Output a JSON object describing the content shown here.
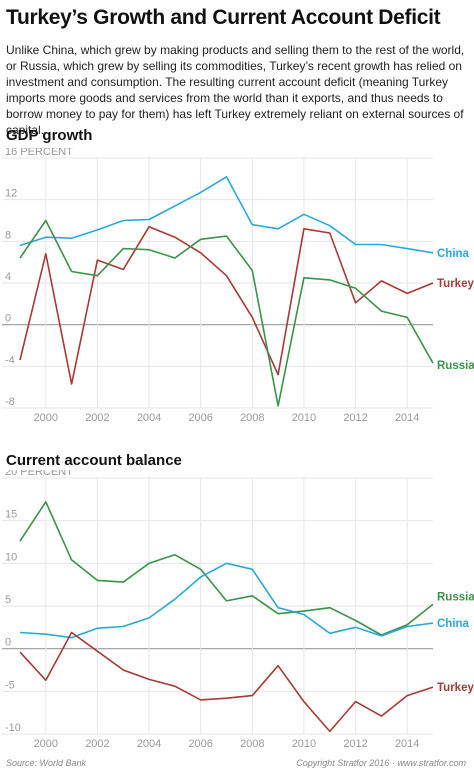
{
  "title": "Turkey’s Growth and Current Account Deficit",
  "intro": "Unlike China, which grew by making products and selling them to the rest of the world, or Russia, which grew by selling its commodities, Turkey’s recent growth has relied on investment and consumption. The resulting current account deficit (meaning Turkey imports more goods and services from the world than it exports, and thus needs to borrow money to pay for them) has left Turkey extremely reliant on external sources of capital.",
  "footer": {
    "source": "Source: World Bank",
    "copyright": "Copyright Stratfor 2016 · www.stratfor.com"
  },
  "colors": {
    "china": "#29a9d8",
    "turkey": "#a63b36",
    "russia": "#3b9348",
    "grid": "#e6e6e6",
    "zero_line": "#9a9a9a",
    "axis_text": "#9a9a9a"
  },
  "chart_data": [
    {
      "type": "line",
      "title": "GDP growth",
      "ylabel": "PERCENT",
      "x": [
        1999,
        2000,
        2001,
        2002,
        2003,
        2004,
        2005,
        2006,
        2007,
        2008,
        2009,
        2010,
        2011,
        2012,
        2013,
        2014,
        2015
      ],
      "xticks": [
        2000,
        2002,
        2004,
        2006,
        2008,
        2010,
        2012,
        2014
      ],
      "xlim": [
        1999,
        2015
      ],
      "ylim": [
        -8,
        16
      ],
      "yticks": [
        -8,
        -4,
        0,
        4,
        8,
        12,
        16
      ],
      "top_tick_label": "16 PERCENT",
      "grid": true,
      "series": [
        {
          "name": "China",
          "color_key": "china",
          "values": [
            7.6,
            8.4,
            8.3,
            9.1,
            10.0,
            10.1,
            11.4,
            12.7,
            14.2,
            9.6,
            9.2,
            10.6,
            9.5,
            7.7,
            7.7,
            7.3,
            6.9
          ]
        },
        {
          "name": "Turkey",
          "color_key": "turkey",
          "values": [
            -3.4,
            6.8,
            -5.7,
            6.2,
            5.3,
            9.4,
            8.4,
            6.9,
            4.7,
            0.7,
            -4.8,
            9.2,
            8.8,
            2.1,
            4.2,
            3.0,
            4.0
          ]
        },
        {
          "name": "Russia",
          "color_key": "russia",
          "values": [
            6.4,
            10.0,
            5.1,
            4.7,
            7.3,
            7.2,
            6.4,
            8.2,
            8.5,
            5.2,
            -7.8,
            4.5,
            4.3,
            3.5,
            1.3,
            0.7,
            -3.7
          ]
        }
      ]
    },
    {
      "type": "line",
      "title": "Current account balance",
      "ylabel": "PERCENT",
      "x": [
        1999,
        2000,
        2001,
        2002,
        2003,
        2004,
        2005,
        2006,
        2007,
        2008,
        2009,
        2010,
        2011,
        2012,
        2013,
        2014,
        2015
      ],
      "xticks": [
        2000,
        2002,
        2004,
        2006,
        2008,
        2010,
        2012,
        2014
      ],
      "xlim": [
        1999,
        2015
      ],
      "ylim": [
        -10,
        20
      ],
      "yticks": [
        -10,
        -5,
        0,
        5,
        10,
        15,
        20
      ],
      "top_tick_label": "20 PERCENT",
      "grid": true,
      "series": [
        {
          "name": "Russia",
          "color_key": "russia",
          "values": [
            12.6,
            17.2,
            10.4,
            8.0,
            7.8,
            10.0,
            11.0,
            9.3,
            5.6,
            6.2,
            4.1,
            4.4,
            4.8,
            3.3,
            1.6,
            2.8,
            5.2
          ]
        },
        {
          "name": "China",
          "color_key": "china",
          "values": [
            1.9,
            1.7,
            1.3,
            2.4,
            2.6,
            3.6,
            5.8,
            8.4,
            10.0,
            9.3,
            4.8,
            4.0,
            1.8,
            2.5,
            1.5,
            2.6,
            3.0
          ]
        },
        {
          "name": "Turkey",
          "color_key": "turkey",
          "values": [
            -0.4,
            -3.7,
            1.9,
            -0.3,
            -2.5,
            -3.6,
            -4.4,
            -6.0,
            -5.8,
            -5.5,
            -2.0,
            -6.2,
            -9.7,
            -6.2,
            -7.9,
            -5.5,
            -4.5
          ]
        }
      ]
    }
  ]
}
